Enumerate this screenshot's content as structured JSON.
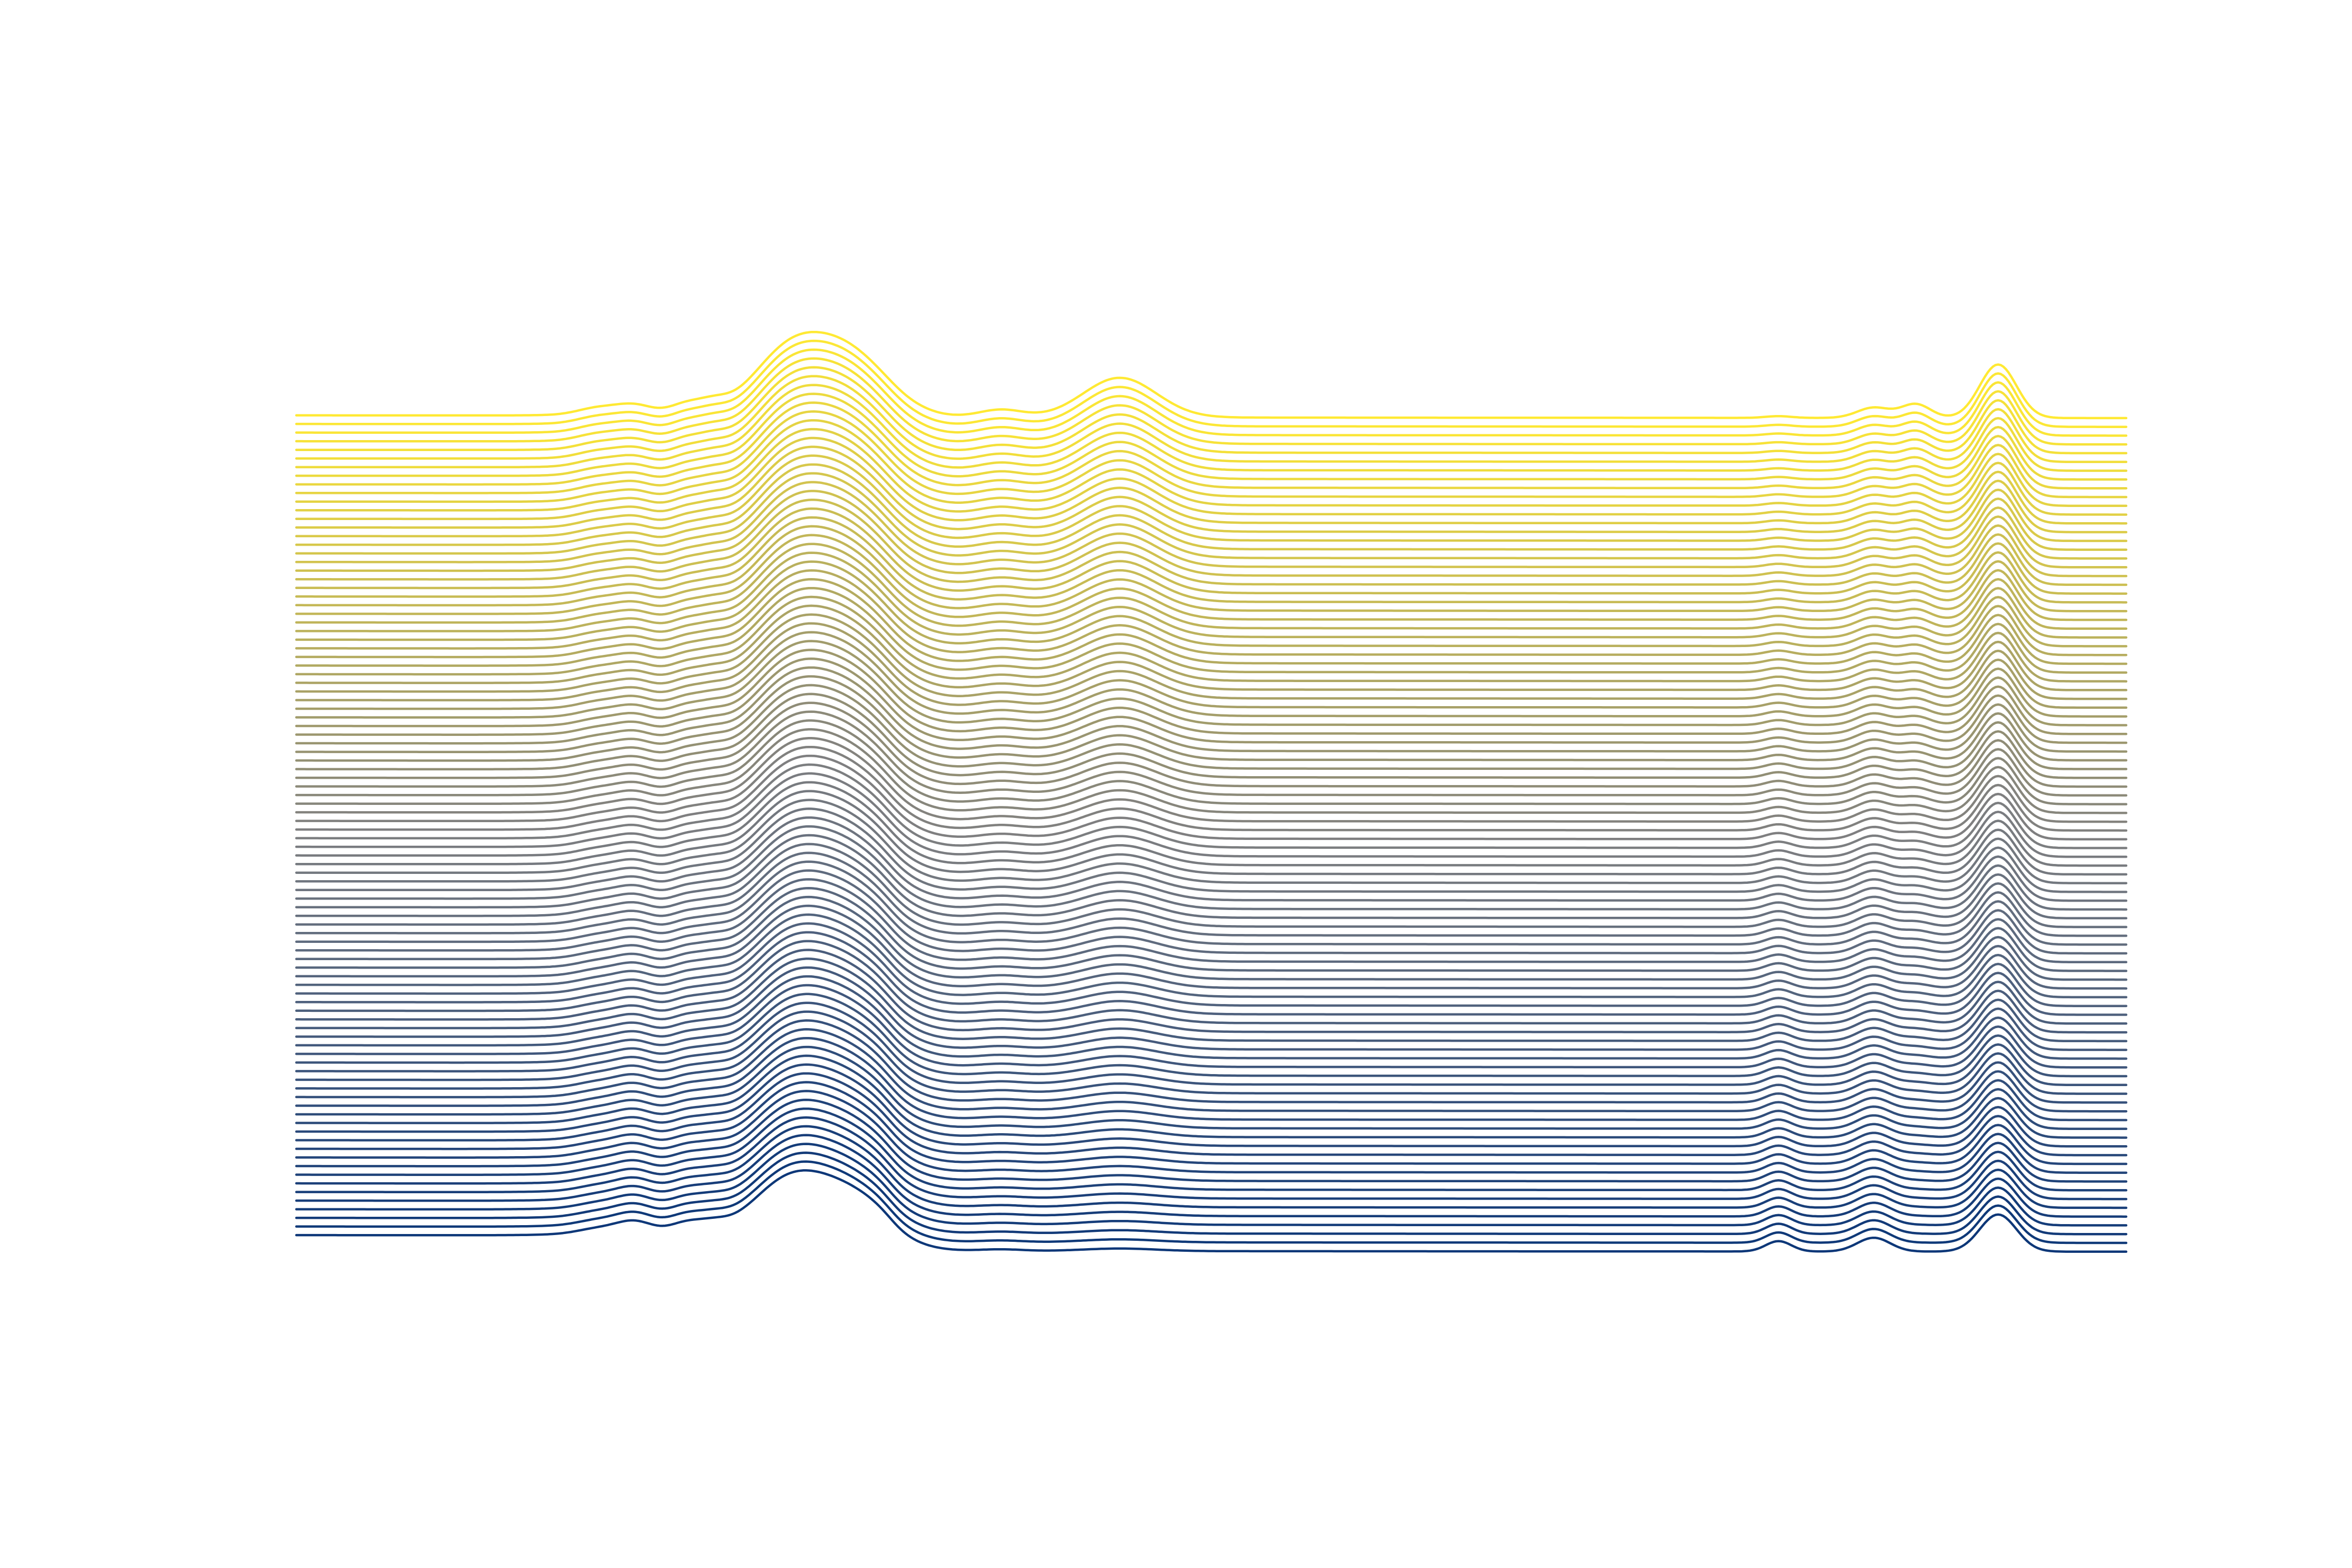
{
  "chart_data": {
    "type": "line",
    "subtype": "stacked-offset-spectra",
    "title": "",
    "xlabel": "",
    "ylabel": "",
    "axes_visible": false,
    "grid": false,
    "legend": "none",
    "series_count": 96,
    "colormap": [
      "#0d3778",
      "#808080",
      "#ffe933"
    ],
    "x_range": [
      0,
      100
    ],
    "baseline_start": {
      "first": 0.0,
      "last": 0.0
    },
    "baseline_end": {
      "first": -0.12,
      "last": -0.12
    },
    "y_offset_step": 1.0,
    "peaks": [
      {
        "center": 16.5,
        "width": 1.1,
        "height_first": 0.6,
        "height_last": 0.8
      },
      {
        "center": 18.5,
        "width": 1.0,
        "height_first": 1.4,
        "height_last": 1.1
      },
      {
        "center": 21.3,
        "width": 0.9,
        "height_first": 1.2,
        "height_last": 1.2
      },
      {
        "center": 22.8,
        "width": 0.8,
        "height_first": 0.8,
        "height_last": 1.0
      },
      {
        "center": 26.8,
        "width": 2.0,
        "height_first": 5.5,
        "height_last": 6.5
      },
      {
        "center": 30.2,
        "width": 2.2,
        "height_first": 4.5,
        "height_last": 6.8
      },
      {
        "center": 38.5,
        "width": 1.2,
        "height_first": 0.2,
        "height_last": 0.9
      },
      {
        "center": 45.0,
        "width": 2.0,
        "height_first": 0.3,
        "height_last": 4.6
      },
      {
        "center": 81.0,
        "width": 0.7,
        "height_first": 1.2,
        "height_last": 0.2
      },
      {
        "center": 86.2,
        "width": 0.9,
        "height_first": 1.6,
        "height_last": 1.2
      },
      {
        "center": 88.5,
        "width": 0.8,
        "height_first": 0.0,
        "height_last": 1.6
      },
      {
        "center": 93.0,
        "width": 1.0,
        "height_first": 4.3,
        "height_last": 6.2
      }
    ],
    "step_edges": [
      {
        "position": 27.5,
        "width": 2.2,
        "height_first": 0.0,
        "height_last": 0.0
      },
      {
        "position": 32.5,
        "width": 1.4,
        "height_first": -2.0,
        "height_last": -0.3
      },
      {
        "position": 14.0,
        "width": 3.0,
        "height_first": 0.2,
        "height_last": 0.1
      }
    ]
  }
}
